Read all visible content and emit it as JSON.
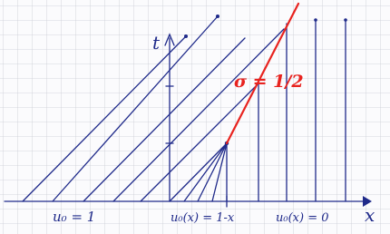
{
  "labels": {
    "t_axis": "t",
    "x_axis": "x",
    "shock": "σ = 1/2",
    "left": "u₀ = 1",
    "middle": "u₀(x) = 1-x",
    "right": "u₀(x) = 0"
  }
}
